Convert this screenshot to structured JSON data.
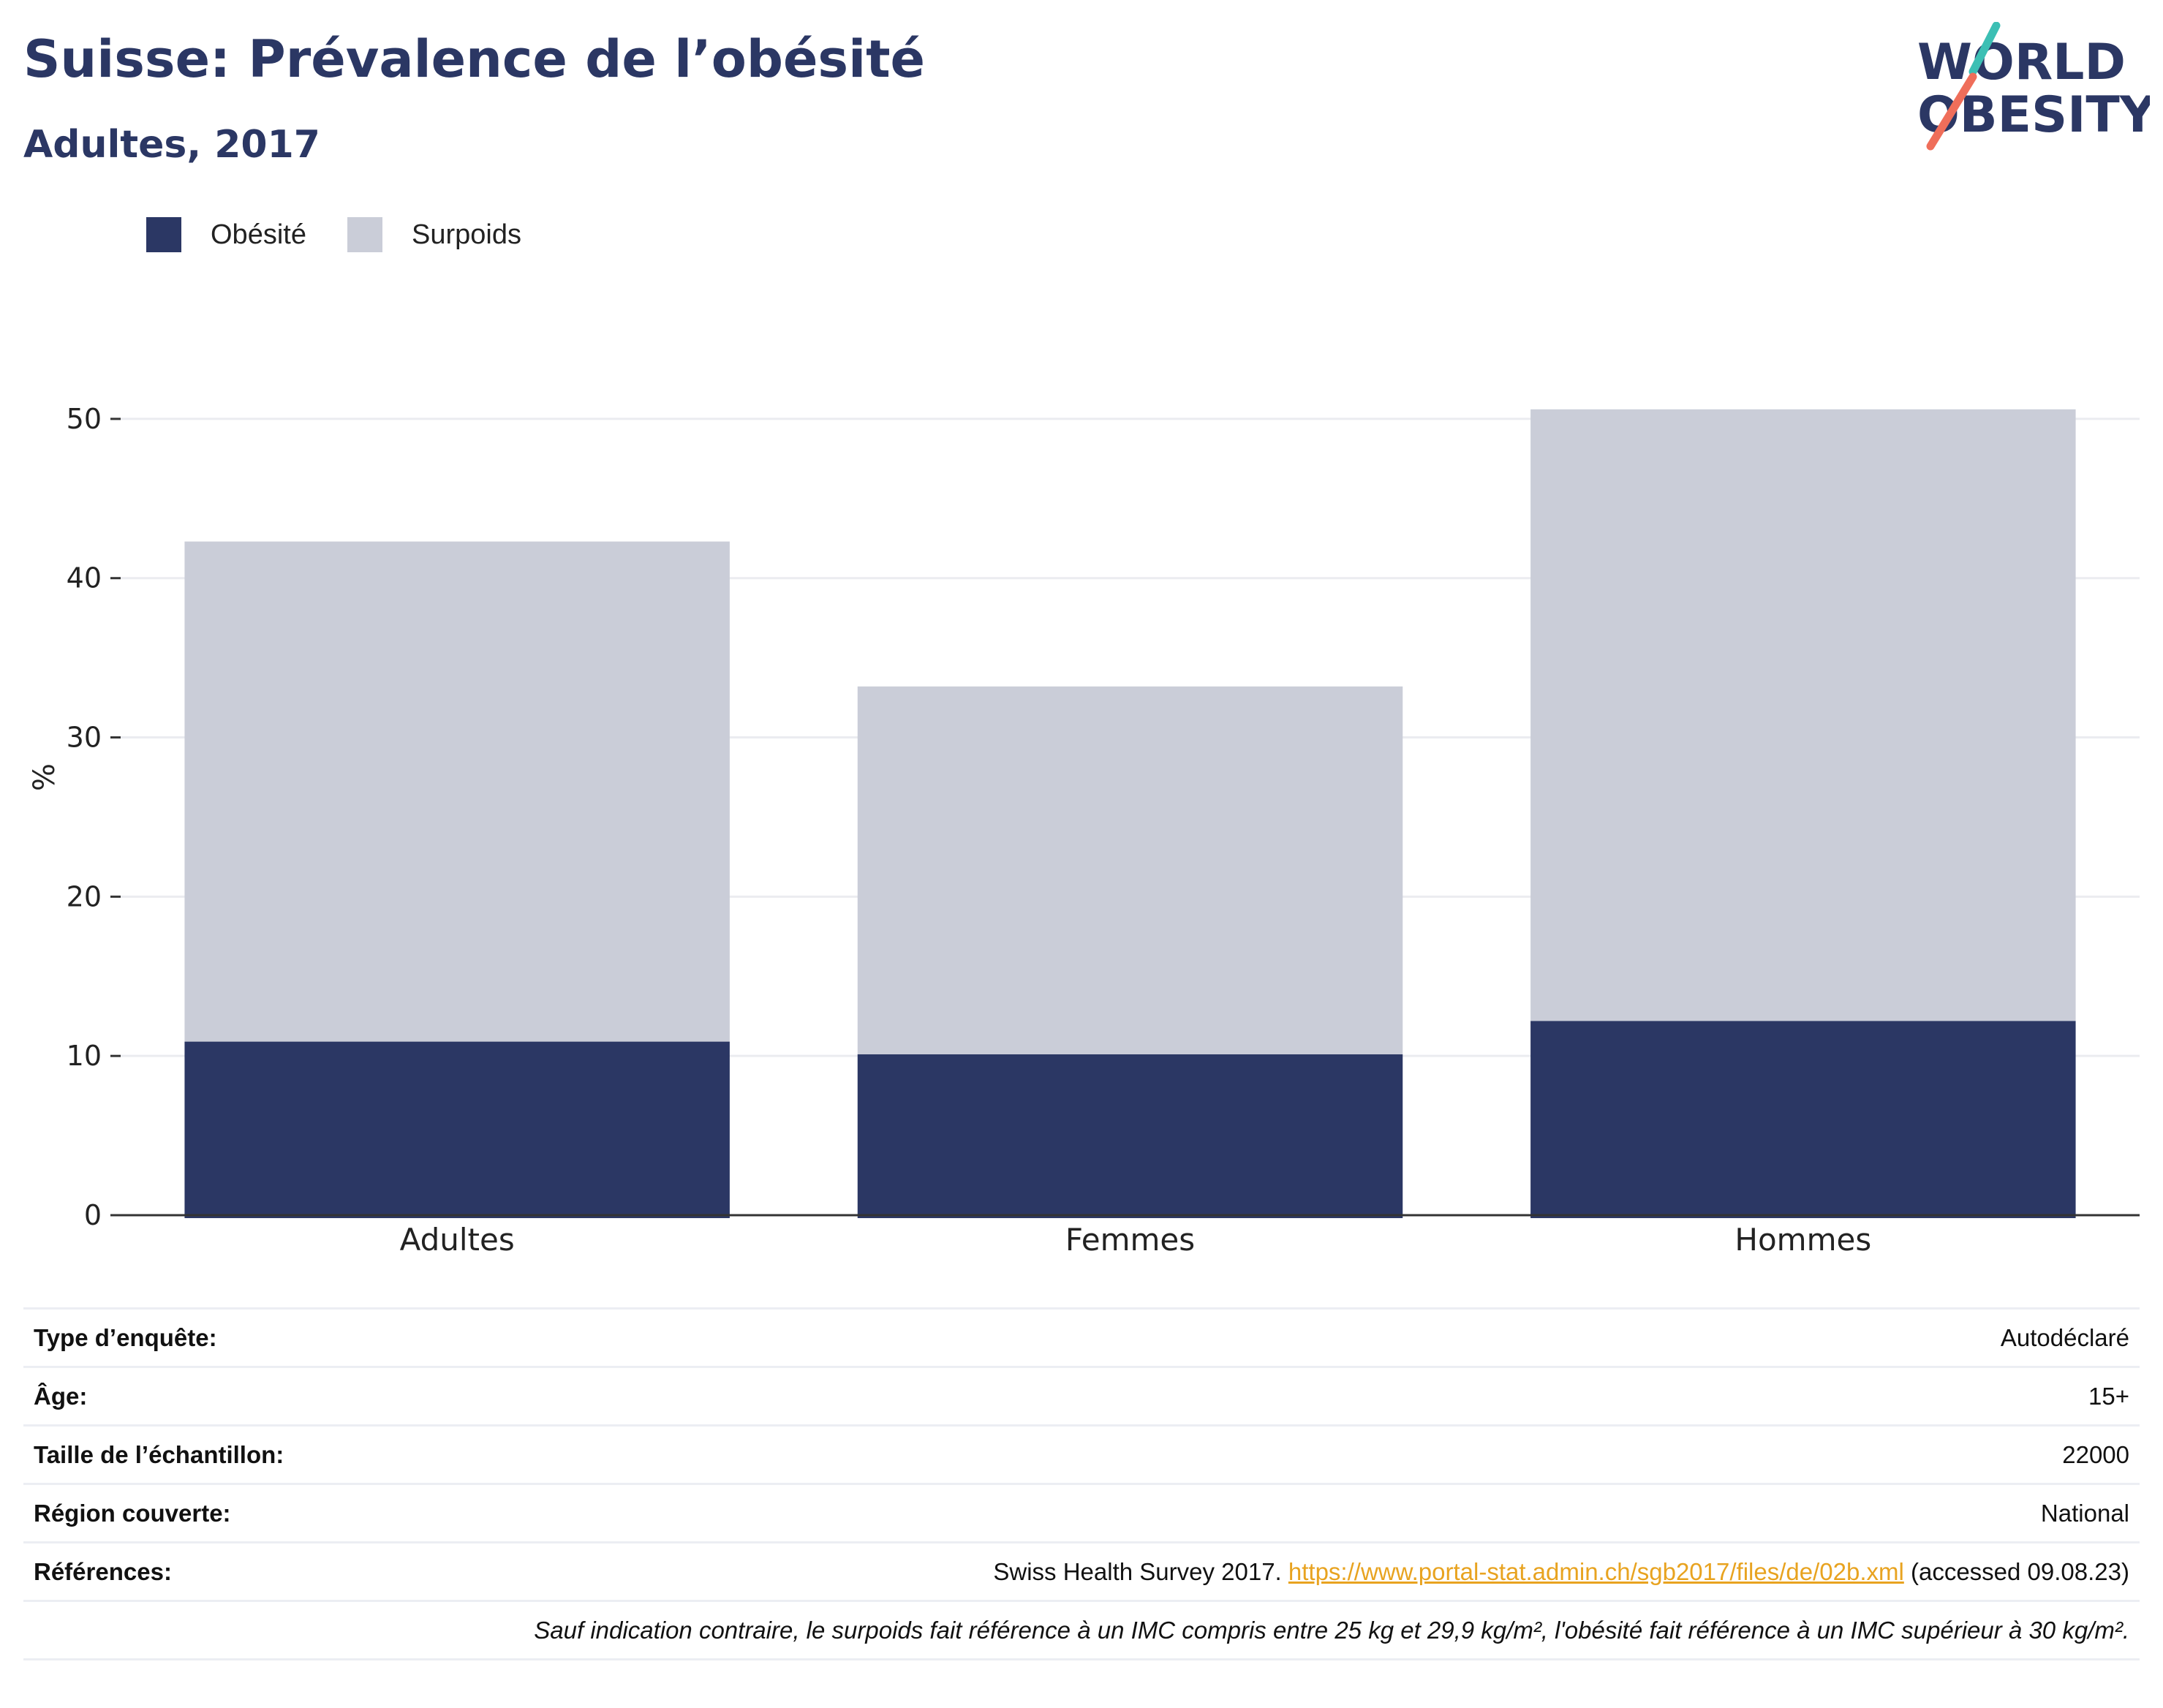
{
  "header": {
    "title": "Suisse: Prévalence de l’obésité",
    "subtitle": "Adultes, 2017"
  },
  "logo": {
    "line1": "WORLD",
    "line2": "OBESITY"
  },
  "colors": {
    "obesity": "#2b3764",
    "overweight": "#cacdd8",
    "link": "#e8a320",
    "title": "#2b3764"
  },
  "chart_data": {
    "type": "bar",
    "stacked": true,
    "categories": [
      "Adultes",
      "Femmes",
      "Hommes"
    ],
    "series": [
      {
        "name": "Obésité",
        "values": [
          10.9,
          10.1,
          12.2
        ],
        "color": "#2b3764"
      },
      {
        "name": "Surpoids",
        "values": [
          31.4,
          23.1,
          38.4
        ],
        "color": "#cacdd8"
      }
    ],
    "ylabel": "%",
    "ylim": [
      0,
      55
    ],
    "yticks": [
      0,
      10,
      20,
      30,
      40,
      50
    ],
    "grid": true,
    "legend_position": "top-left"
  },
  "info": {
    "survey_type": {
      "label": "Type d’enquête:",
      "value": "Autodéclaré"
    },
    "age": {
      "label": "Âge:",
      "value": "15+"
    },
    "sample": {
      "label": "Taille de l’échantillon:",
      "value": "22000"
    },
    "region": {
      "label": "Région couverte:",
      "value": "National"
    },
    "references": {
      "label": "Références:",
      "prefix": "Swiss Health Survey 2017.",
      "link": "https://www.portal-stat.admin.ch/sgb2017/files/de/02b.xml",
      "suffix": "(accessed 09.08.23)"
    },
    "note": "Sauf indication contraire, le surpoids fait référence à un IMC compris entre 25 kg et 29,9 kg/m², l'obésité fait référence à un IMC supérieur à 30 kg/m²."
  }
}
